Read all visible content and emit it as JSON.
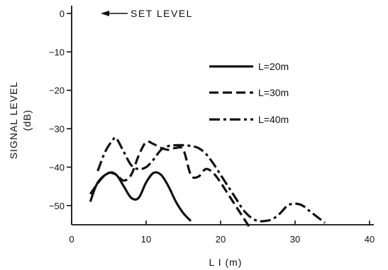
{
  "chart_data": {
    "type": "line",
    "title": "",
    "xlabel": "L I (m)",
    "ylabel": "SIGNAL LEVEL",
    "ylabel_unit": "(dB)",
    "xlim": [
      0,
      40
    ],
    "ylim": [
      -55,
      0
    ],
    "x_ticks": [
      0,
      10,
      20,
      30,
      40
    ],
    "x_tick_labels": [
      "0",
      "10",
      "20",
      "30",
      "40"
    ],
    "y_ticks": [
      0,
      -10,
      -20,
      -30,
      -40,
      -50
    ],
    "y_tick_labels": [
      "0",
      "−10",
      "−20",
      "−30",
      "−40",
      "−50"
    ],
    "grid": false,
    "legend_position": "right",
    "annotation": {
      "text": "SET LEVEL",
      "y": 0,
      "arrow": "left"
    },
    "series": [
      {
        "name": "L=20m",
        "style": "solid",
        "x": [
          2.5,
          3.5,
          5,
          6,
          7,
          8,
          9,
          10,
          11,
          12,
          13,
          14,
          15,
          16
        ],
        "y": [
          -49,
          -44,
          -41.5,
          -42,
          -45,
          -48,
          -48,
          -44,
          -41.5,
          -42,
          -45,
          -49,
          -52,
          -54
        ]
      },
      {
        "name": "L=30m",
        "style": "dashed",
        "x": [
          2.5,
          4,
          5,
          6,
          7,
          8,
          9,
          10,
          11,
          12,
          13,
          14,
          15,
          16,
          17,
          18,
          19,
          20,
          21,
          22,
          23,
          24
        ],
        "y": [
          -47,
          -43,
          -41.5,
          -42,
          -43.5,
          -42,
          -37,
          -33.5,
          -34,
          -35,
          -35.5,
          -35,
          -35.5,
          -42,
          -42.5,
          -40.5,
          -41.5,
          -44,
          -47,
          -50,
          -53,
          -56
        ]
      },
      {
        "name": "L=40m",
        "style": "dash-dot",
        "x": [
          3.5,
          4.5,
          5.5,
          6,
          7,
          8,
          9,
          10,
          11,
          12,
          13,
          14,
          15,
          16,
          17,
          18,
          19,
          20,
          21,
          22,
          23,
          24,
          25,
          26,
          27,
          28,
          29,
          30,
          31,
          32,
          33,
          34
        ],
        "y": [
          -41,
          -36,
          -33,
          -32.5,
          -36,
          -39.5,
          -40.5,
          -40,
          -38,
          -35.5,
          -34.5,
          -34.3,
          -34.3,
          -34.5,
          -35,
          -36.5,
          -39,
          -42,
          -45,
          -48,
          -51,
          -53,
          -54,
          -54,
          -53.5,
          -52,
          -50,
          -49.5,
          -50,
          -51.5,
          -53,
          -54.5
        ]
      }
    ]
  }
}
